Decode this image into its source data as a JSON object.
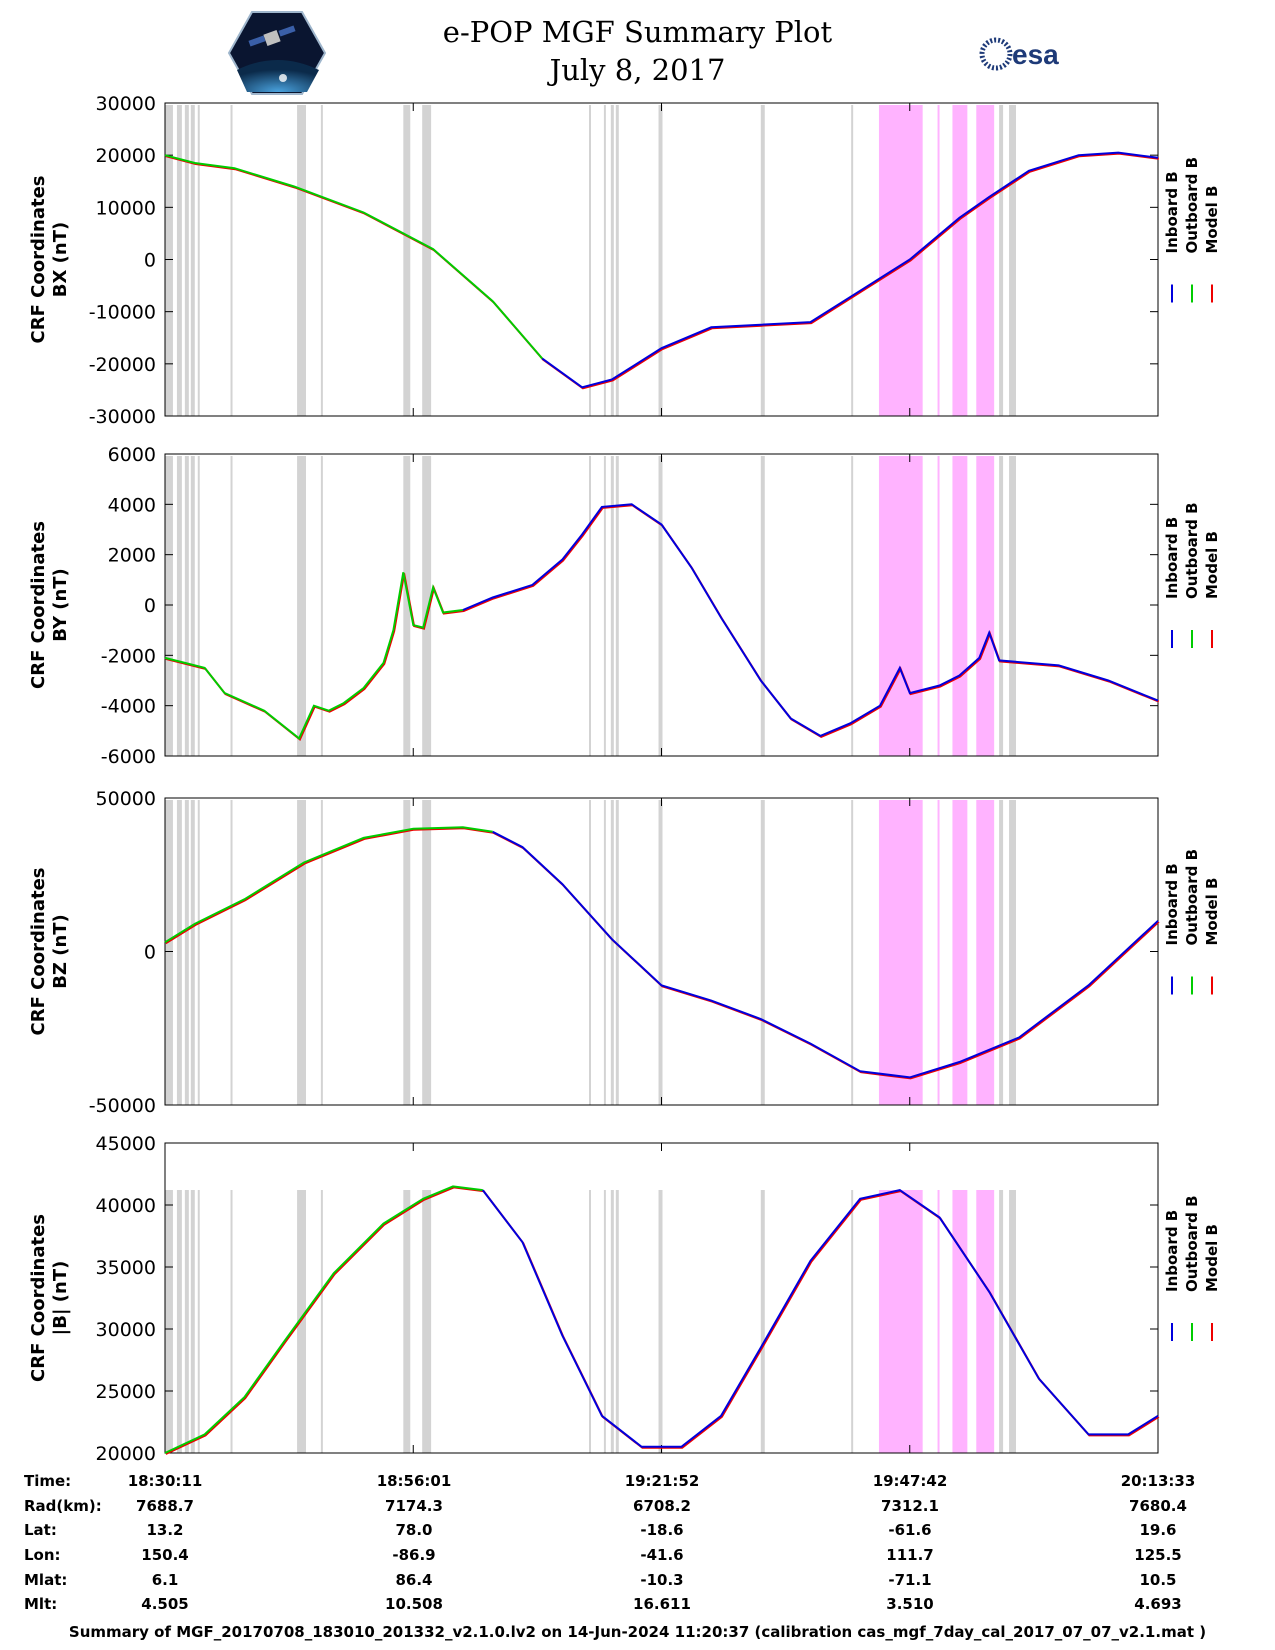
{
  "title": {
    "line1": "e-POP MGF Summary Plot",
    "line2": "July 8, 2017"
  },
  "logos": {
    "left": "cassiope-icon",
    "right_text": "esa"
  },
  "colors": {
    "inboard": "#0000dd",
    "outboard": "#00cc00",
    "model": "#ee0000",
    "gray_band": "#d3d3d3",
    "pink_band": "#ffb3ff"
  },
  "chart_data": [
    {
      "type": "line",
      "ylabel_line1": "CRF Coordinates",
      "ylabel_line2": "BX (nT)",
      "ylim": [
        -30000,
        30000
      ],
      "yticks": [
        -30000,
        -20000,
        -10000,
        0,
        10000,
        20000,
        30000
      ],
      "ytick_labels": [
        "-30000",
        "-20000",
        "-10000",
        "0",
        "10000",
        "20000",
        "30000"
      ],
      "legend": [
        "Inboard B",
        "Outboard B",
        "Model B"
      ],
      "switch_t": 0.39,
      "series_points": [
        [
          0,
          20000
        ],
        [
          0.03,
          18500
        ],
        [
          0.07,
          17500
        ],
        [
          0.13,
          14000
        ],
        [
          0.2,
          9000
        ],
        [
          0.27,
          2000
        ],
        [
          0.33,
          -8000
        ],
        [
          0.38,
          -19000
        ],
        [
          0.42,
          -24500
        ],
        [
          0.45,
          -23000
        ],
        [
          0.5,
          -17000
        ],
        [
          0.55,
          -13000
        ],
        [
          0.6,
          -12500
        ],
        [
          0.65,
          -12000
        ],
        [
          0.7,
          -6000
        ],
        [
          0.75,
          0
        ],
        [
          0.8,
          8000
        ],
        [
          0.83,
          12000
        ],
        [
          0.87,
          17000
        ],
        [
          0.92,
          20000
        ],
        [
          0.96,
          20500
        ],
        [
          1,
          19500
        ]
      ]
    },
    {
      "type": "line",
      "ylabel_line1": "CRF Coordinates",
      "ylabel_line2": "BY (nT)",
      "ylim": [
        -6000,
        6000
      ],
      "yticks": [
        -6000,
        -4000,
        -2000,
        0,
        2000,
        4000,
        6000
      ],
      "ytick_labels": [
        "-6000",
        "-4000",
        "-2000",
        "0",
        "2000",
        "4000",
        "6000"
      ],
      "legend": [
        "Inboard B",
        "Outboard B",
        "Model B"
      ],
      "switch_t": 0.31,
      "series_points": [
        [
          0,
          -2100
        ],
        [
          0.02,
          -2300
        ],
        [
          0.04,
          -2500
        ],
        [
          0.06,
          -3500
        ],
        [
          0.1,
          -4200
        ],
        [
          0.135,
          -5300
        ],
        [
          0.15,
          -4000
        ],
        [
          0.165,
          -4200
        ],
        [
          0.18,
          -3900
        ],
        [
          0.2,
          -3300
        ],
        [
          0.22,
          -2300
        ],
        [
          0.23,
          -1000
        ],
        [
          0.24,
          1300
        ],
        [
          0.25,
          -800
        ],
        [
          0.26,
          -900
        ],
        [
          0.27,
          700
        ],
        [
          0.28,
          -300
        ],
        [
          0.3,
          -200
        ],
        [
          0.33,
          300
        ],
        [
          0.37,
          800
        ],
        [
          0.4,
          1800
        ],
        [
          0.42,
          2800
        ],
        [
          0.44,
          3900
        ],
        [
          0.47,
          4000
        ],
        [
          0.5,
          3200
        ],
        [
          0.53,
          1500
        ],
        [
          0.56,
          -500
        ],
        [
          0.6,
          -3000
        ],
        [
          0.63,
          -4500
        ],
        [
          0.66,
          -5200
        ],
        [
          0.69,
          -4700
        ],
        [
          0.72,
          -4000
        ],
        [
          0.74,
          -2500
        ],
        [
          0.75,
          -3500
        ],
        [
          0.78,
          -3200
        ],
        [
          0.8,
          -2800
        ],
        [
          0.82,
          -2100
        ],
        [
          0.83,
          -1100
        ],
        [
          0.84,
          -2200
        ],
        [
          0.9,
          -2400
        ],
        [
          0.95,
          -3000
        ],
        [
          1,
          -3800
        ]
      ]
    },
    {
      "type": "line",
      "ylabel_line1": "CRF Coordinates",
      "ylabel_line2": "BZ (nT)",
      "ylim": [
        -50000,
        50000
      ],
      "yticks": [
        -50000,
        0,
        50000
      ],
      "ytick_labels": [
        "-50000",
        "0",
        "50000"
      ],
      "legend": [
        "Inboard B",
        "Outboard B",
        "Model B"
      ],
      "switch_t": 0.33,
      "series_points": [
        [
          0,
          3000
        ],
        [
          0.03,
          9000
        ],
        [
          0.08,
          17000
        ],
        [
          0.14,
          29000
        ],
        [
          0.2,
          37000
        ],
        [
          0.25,
          40000
        ],
        [
          0.3,
          40500
        ],
        [
          0.33,
          39000
        ],
        [
          0.36,
          34000
        ],
        [
          0.4,
          22000
        ],
        [
          0.45,
          4000
        ],
        [
          0.5,
          -11000
        ],
        [
          0.55,
          -16000
        ],
        [
          0.6,
          -22000
        ],
        [
          0.65,
          -30000
        ],
        [
          0.7,
          -39000
        ],
        [
          0.75,
          -41000
        ],
        [
          0.8,
          -36000
        ],
        [
          0.86,
          -28000
        ],
        [
          0.93,
          -11000
        ],
        [
          1,
          10000
        ]
      ]
    },
    {
      "type": "line",
      "ylabel_line1": "CRF Coordinates",
      "ylabel_line2": "|B| (nT)",
      "ylim": [
        20000,
        45000
      ],
      "yticks": [
        20000,
        25000,
        30000,
        35000,
        40000,
        45000
      ],
      "ytick_labels": [
        "20000",
        "25000",
        "30000",
        "35000",
        "40000",
        "45000"
      ],
      "legend": [
        "Inboard B",
        "Outboard B",
        "Model B"
      ],
      "switch_t": 0.32,
      "series_points": [
        [
          0,
          20000
        ],
        [
          0.04,
          21500
        ],
        [
          0.08,
          24500
        ],
        [
          0.12,
          29000
        ],
        [
          0.17,
          34500
        ],
        [
          0.22,
          38500
        ],
        [
          0.26,
          40500
        ],
        [
          0.29,
          41500
        ],
        [
          0.32,
          41200
        ],
        [
          0.36,
          37000
        ],
        [
          0.4,
          29500
        ],
        [
          0.44,
          23000
        ],
        [
          0.48,
          20500
        ],
        [
          0.52,
          20500
        ],
        [
          0.56,
          23000
        ],
        [
          0.6,
          28500
        ],
        [
          0.65,
          35500
        ],
        [
          0.7,
          40500
        ],
        [
          0.74,
          41200
        ],
        [
          0.78,
          39000
        ],
        [
          0.83,
          33000
        ],
        [
          0.88,
          26000
        ],
        [
          0.93,
          21500
        ],
        [
          0.97,
          21500
        ],
        [
          1,
          23000
        ]
      ]
    }
  ],
  "band_data": {
    "gray": [
      [
        0.0,
        0.008
      ],
      [
        0.012,
        0.017
      ],
      [
        0.02,
        0.024
      ],
      [
        0.026,
        0.03
      ],
      [
        0.033,
        0.035
      ],
      [
        0.066,
        0.068
      ],
      [
        0.133,
        0.142
      ],
      [
        0.157,
        0.159
      ],
      [
        0.24,
        0.247
      ],
      [
        0.259,
        0.268
      ],
      [
        0.427,
        0.429
      ],
      [
        0.442,
        0.444
      ],
      [
        0.449,
        0.452
      ],
      [
        0.454,
        0.457
      ],
      [
        0.497,
        0.501
      ],
      [
        0.6,
        0.604
      ],
      [
        0.691,
        0.693
      ],
      [
        0.82,
        0.823
      ],
      [
        0.828,
        0.831
      ],
      [
        0.84,
        0.844
      ],
      [
        0.85,
        0.857
      ]
    ],
    "pink": [
      [
        0.719,
        0.763
      ],
      [
        0.778,
        0.78
      ],
      [
        0.793,
        0.808
      ],
      [
        0.817,
        0.835
      ]
    ]
  },
  "x_ticks": [
    0.25,
    0.5,
    0.75
  ],
  "info_table": {
    "labels": [
      "Time:",
      "Rad(km):",
      "Lat:",
      "Lon:",
      "Mlat:",
      "Mlt:"
    ],
    "columns": [
      [
        "18:30:11",
        "7688.7",
        "13.2",
        "150.4",
        "6.1",
        "4.505"
      ],
      [
        "18:56:01",
        "7174.3",
        "78.0",
        "-86.9",
        "86.4",
        "10.508"
      ],
      [
        "19:21:52",
        "6708.2",
        "-18.6",
        "-41.6",
        "-10.3",
        "16.611"
      ],
      [
        "19:47:42",
        "7312.1",
        "-61.6",
        "111.7",
        "-71.1",
        "3.510"
      ],
      [
        "20:13:33",
        "7680.4",
        "19.6",
        "125.5",
        "10.5",
        "4.693"
      ]
    ]
  },
  "footer": "Summary of MGF_20170708_183010_201332_v2.1.0.lv2 on 14-Jun-2024 11:20:37 (calibration cas_mgf_7day_cal_2017_07_07_v2.1.mat )"
}
